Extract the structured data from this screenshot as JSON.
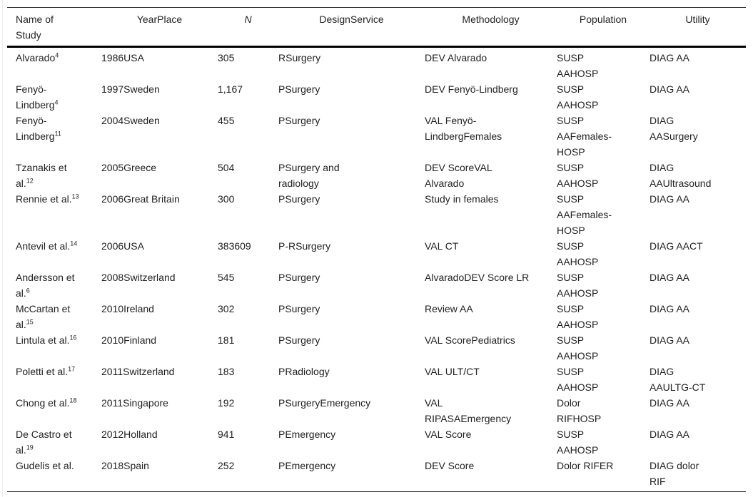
{
  "headers": [
    "Name of Study",
    "YearPlace",
    "N",
    "DesignService",
    "Methodology",
    "Population",
    "Utility"
  ],
  "rows": [
    {
      "name": "Alvarado",
      "ref": "4",
      "year_place": "1986USA",
      "n": "305",
      "design_service": "RSurgery",
      "methodology": "DEV Alvarado",
      "population": "SUSP AAHOSP",
      "utility": "DIAG AA"
    },
    {
      "name": "Fenyö-Lindberg",
      "ref": "4",
      "year_place": "1997Sweden",
      "n": "1,167",
      "design_service": "PSurgery",
      "methodology": "DEV Fenyö-Lindberg",
      "population": "SUSP AAHOSP",
      "utility": "DIAG AA"
    },
    {
      "name": "Fenyö-Lindberg",
      "ref": "11",
      "year_place": "2004Sweden",
      "n": "455",
      "design_service": "PSurgery",
      "methodology": "VAL Fenyö-LindbergFemales",
      "population": "SUSP AAFemales-HOSP",
      "utility": "DIAG AASurgery"
    },
    {
      "name": "Tzanakis et al.",
      "ref": "12",
      "year_place": "2005Greece",
      "n": "504",
      "design_service": "PSurgery and radiology",
      "methodology": "DEV ScoreVAL Alvarado",
      "population": "SUSP AAHOSP",
      "utility": "DIAG AAUltrasound"
    },
    {
      "name": "Rennie et al.",
      "ref": "13",
      "year_place": "2006Great Britain",
      "n": "300",
      "design_service": "PSurgery",
      "methodology": "Study in females",
      "population": "SUSP AAFemales-HOSP",
      "utility": "DIAG AA"
    },
    {
      "name": "Antevil et al.",
      "ref": "14",
      "year_place": "2006USA",
      "n": "383609",
      "design_service": "P-RSurgery",
      "methodology": "VAL CT",
      "population": "SUSP AAHOSP",
      "utility": "DIAG AACT"
    },
    {
      "name": "Andersson et al.",
      "ref": "6",
      "year_place": "2008Switzerland",
      "n": "545",
      "design_service": "PSurgery",
      "methodology": "AlvaradoDEV Score LR",
      "population": "SUSP AAHOSP",
      "utility": "DIAG AA"
    },
    {
      "name": "McCartan et al.",
      "ref": "15",
      "year_place": "2010Ireland",
      "n": "302",
      "design_service": "PSurgery",
      "methodology": "Review AA",
      "population": "SUSP AAHOSP",
      "utility": "DIAG AA"
    },
    {
      "name": "Lintula et al.",
      "ref": "16",
      "year_place": "2010Finland",
      "n": "181",
      "design_service": "PSurgery",
      "methodology": "VAL ScorePediatrics",
      "population": "SUSP AAHOSP",
      "utility": "DIAG AA"
    },
    {
      "name": "Poletti et al.",
      "ref": "17",
      "year_place": "2011Switzerland",
      "n": "183",
      "design_service": "PRadiology",
      "methodology": "VAL ULT/CT",
      "population": "SUSP AAHOSP",
      "utility": "DIAG AAULTG-CT"
    },
    {
      "name": "Chong et al.",
      "ref": "18",
      "year_place": "2011Singapore",
      "n": "192",
      "design_service": "PSurgeryEmergency",
      "methodology": "VAL RIPASAEmergency",
      "population": "Dolor RIFHOSP",
      "utility": "DIAG AA"
    },
    {
      "name": "De Castro et al.",
      "ref": "19",
      "year_place": "2012Holland",
      "n": "941",
      "design_service": "PEmergency",
      "methodology": "VAL Score",
      "population": "SUSP AAHOSP",
      "utility": "DIAG AA"
    },
    {
      "name": "Gudelis et al.",
      "ref": "",
      "year_place": "2018Spain",
      "n": "252",
      "design_service": "PEmergency",
      "methodology": "DEV Score",
      "population": "Dolor RIFER",
      "utility": "DIAG dolor RIF"
    }
  ]
}
